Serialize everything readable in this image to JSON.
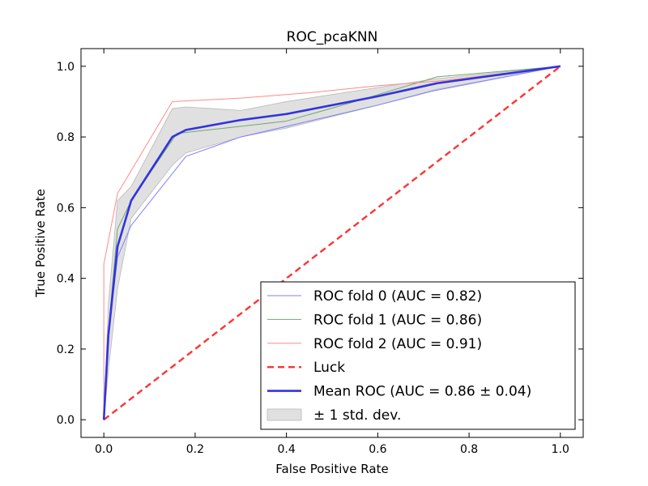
{
  "chart_data": {
    "type": "line",
    "title": "ROC_pcaKNN",
    "xlabel": "False Positive Rate",
    "ylabel": "True Positive Rate",
    "xlim": [
      -0.05,
      1.05
    ],
    "ylim": [
      -0.05,
      1.05
    ],
    "x_ticks": [
      "0.0",
      "0.2",
      "0.4",
      "0.6",
      "0.8",
      "1.0"
    ],
    "y_ticks": [
      "0.0",
      "0.2",
      "0.4",
      "0.6",
      "0.8",
      "1.0"
    ],
    "grid": false,
    "legend_position": "lower-right",
    "series": [
      {
        "name": "ROC fold 0 (AUC = 0.82)",
        "color": "#7f7fff",
        "style": "thin",
        "x": [
          0.0,
          0.01,
          0.03,
          0.06,
          0.18,
          0.3,
          0.4,
          0.6,
          0.72,
          1.0
        ],
        "y": [
          0.0,
          0.24,
          0.46,
          0.55,
          0.745,
          0.8,
          0.83,
          0.89,
          0.93,
          1.0
        ]
      },
      {
        "name": "ROC fold 1 (AUC = 0.86)",
        "color": "#6fa86f",
        "style": "thin",
        "x": [
          0.0,
          0.01,
          0.03,
          0.06,
          0.16,
          0.3,
          0.4,
          0.55,
          0.73,
          1.0
        ],
        "y": [
          0.0,
          0.25,
          0.54,
          0.62,
          0.81,
          0.83,
          0.845,
          0.9,
          0.97,
          1.0
        ]
      },
      {
        "name": "ROC fold 2 (AUC = 0.91)",
        "color": "#ff8a8a",
        "style": "thin",
        "x": [
          0.0,
          0.0,
          0.0,
          0.03,
          0.15,
          0.3,
          0.45,
          0.6,
          0.75,
          1.0
        ],
        "y": [
          0.0,
          0.17,
          0.44,
          0.64,
          0.9,
          0.91,
          0.925,
          0.945,
          0.96,
          1.0
        ]
      },
      {
        "name": "Luck",
        "color": "#ff3333",
        "style": "dashed",
        "x": [
          0.0,
          1.0
        ],
        "y": [
          0.0,
          1.0
        ]
      },
      {
        "name": "Mean ROC (AUC = 0.86 ± 0.04)",
        "color": "#3333dd",
        "style": "thick",
        "x": [
          0.0,
          0.01,
          0.03,
          0.06,
          0.15,
          0.18,
          0.3,
          0.4,
          0.6,
          0.73,
          1.0
        ],
        "y": [
          0.0,
          0.24,
          0.49,
          0.62,
          0.8,
          0.82,
          0.848,
          0.865,
          0.915,
          0.952,
          1.0
        ]
      }
    ],
    "band": {
      "name": "± 1 std. dev.",
      "color": "#e0e0e0",
      "edge_color": "#b8b8b8",
      "x": [
        0.0,
        0.01,
        0.03,
        0.06,
        0.15,
        0.18,
        0.3,
        0.4,
        0.6,
        0.73,
        1.0
      ],
      "upper": [
        0.0,
        0.33,
        0.62,
        0.66,
        0.88,
        0.885,
        0.875,
        0.9,
        0.94,
        0.965,
        1.0
      ],
      "lower": [
        0.0,
        0.14,
        0.37,
        0.57,
        0.72,
        0.755,
        0.8,
        0.825,
        0.89,
        0.935,
        1.0
      ]
    }
  }
}
